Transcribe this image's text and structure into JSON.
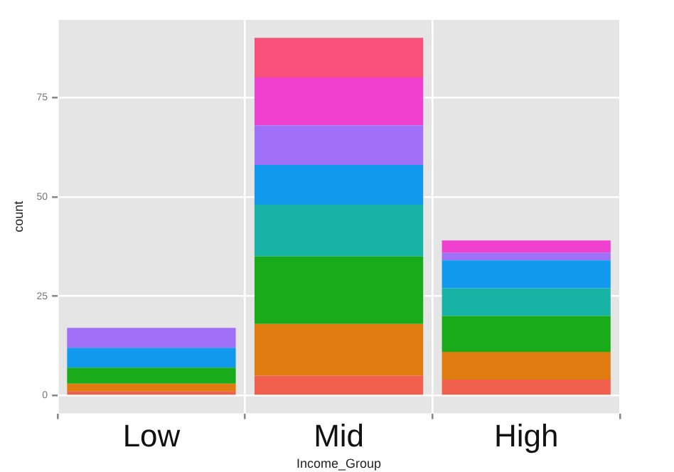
{
  "chart_data": {
    "type": "bar",
    "stacked": true,
    "xlabel": "Income_Group",
    "ylabel": "count",
    "categories": [
      "Low",
      "Mid",
      "High"
    ],
    "series": [
      {
        "color": "#f0604d",
        "values": [
          1,
          5,
          4
        ]
      },
      {
        "color": "#e07b10",
        "values": [
          2,
          13,
          7
        ]
      },
      {
        "color": "#1aab1a",
        "values": [
          4,
          17,
          9
        ]
      },
      {
        "color": "#17b3a5",
        "values": [
          0,
          13,
          7
        ]
      },
      {
        "color": "#1199ee",
        "values": [
          5,
          10,
          7
        ]
      },
      {
        "color": "#a070f8",
        "values": [
          5,
          10,
          2
        ]
      },
      {
        "color": "#f040d0",
        "values": [
          0,
          12,
          3
        ]
      },
      {
        "color": "#f8507a",
        "values": [
          0,
          10,
          0
        ]
      }
    ],
    "ylim": [
      -4.5,
      94.5
    ],
    "yticks": [
      0,
      25,
      50,
      75
    ],
    "grid": true,
    "legend": false
  }
}
